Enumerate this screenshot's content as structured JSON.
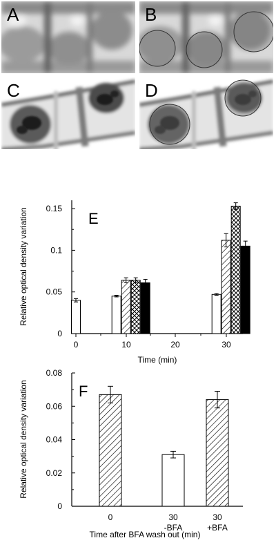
{
  "panels": {
    "a": "A",
    "b": "B",
    "c": "C",
    "d": "D"
  },
  "chart_data": [
    {
      "panel_label": "E",
      "type": "bar",
      "categories": [
        "0",
        "10",
        "20",
        "30"
      ],
      "xlabel": "Time (min)",
      "ylabel": "Relative optical density variation",
      "ylim": [
        0,
        0.16
      ],
      "ytick_labels": [
        "0",
        "0.05",
        "0.1",
        "0.15"
      ],
      "yticks": [
        0,
        0.05,
        0.1,
        0.15
      ],
      "grid": false,
      "series": [
        {
          "fill": "white",
          "values": [
            0.04,
            0.045,
            null,
            0.047
          ],
          "errors": [
            0.002,
            0.001,
            null,
            0.001
          ]
        },
        {
          "fill": "diagonal-hatch",
          "values": [
            null,
            0.064,
            null,
            0.112
          ],
          "errors": [
            null,
            0.003,
            null,
            0.008
          ]
        },
        {
          "fill": "cross-hatch",
          "values": [
            null,
            0.064,
            null,
            0.153
          ],
          "errors": [
            null,
            0.003,
            null,
            0.004
          ]
        },
        {
          "fill": "black",
          "values": [
            null,
            0.061,
            null,
            0.105
          ],
          "errors": [
            null,
            0.004,
            null,
            0.006
          ]
        }
      ]
    },
    {
      "panel_label": "F",
      "type": "bar",
      "categories": [
        "0",
        "30\n-BFA",
        "30\n+BFA"
      ],
      "xlabel": "Time after BFA wash out (min)",
      "ylabel": "Relative optical density variation",
      "ylim": [
        0,
        0.08
      ],
      "ytick_labels": [
        "0",
        "0.02",
        "0.04",
        "0.06",
        "0.08"
      ],
      "yticks": [
        0,
        0.02,
        0.04,
        0.06,
        0.08
      ],
      "grid": false,
      "bars": [
        {
          "category": "0",
          "fill": "diagonal-hatch",
          "value": 0.067,
          "error": 0.005
        },
        {
          "category": "30\n-BFA",
          "fill": "white",
          "value": 0.031,
          "error": 0.002
        },
        {
          "category": "30\n+BFA",
          "fill": "diagonal-hatch",
          "value": 0.064,
          "error": 0.005
        }
      ]
    }
  ]
}
